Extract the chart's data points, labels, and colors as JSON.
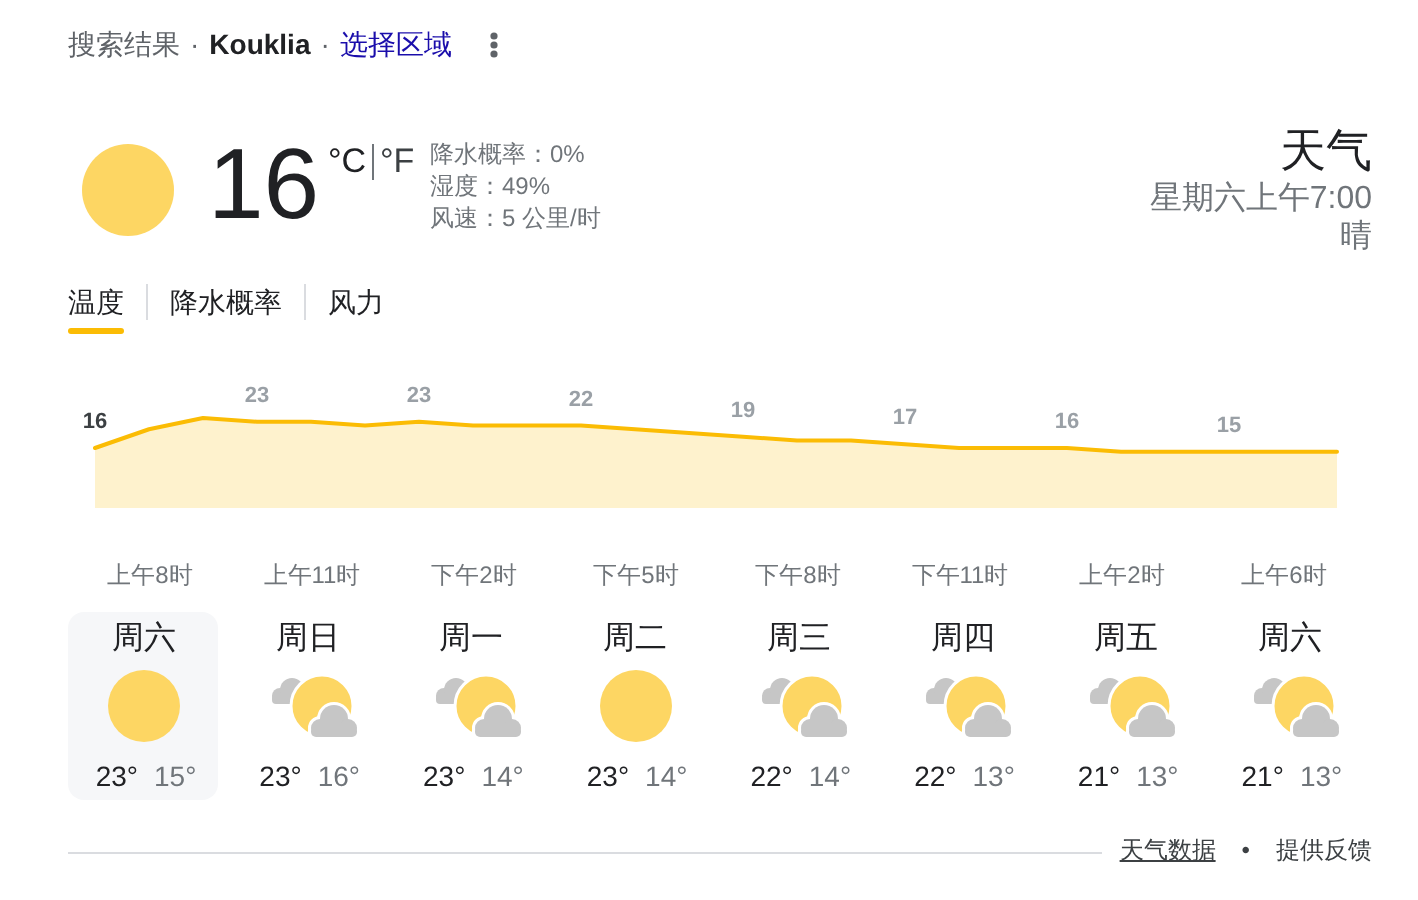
{
  "chart_data": [
    {
      "type": "other",
      "annotations": [
        "搜索结果",
        "·",
        "Kouklia",
        "·",
        "选择区域",
        "16",
        "°C",
        "°F",
        "降水概率：0%",
        "湿度：49%",
        "风速：5 公里/时",
        "天气",
        "星期六上午7:00",
        "晴",
        "温度",
        "降水概率",
        "风力"
      ]
    },
    {
      "type": "area",
      "categories": [
        null,
        "上午8时",
        null,
        null,
        "上午11时",
        null,
        null,
        "下午2时",
        null,
        null,
        "下午5时",
        null,
        null,
        "下午8时",
        null,
        null,
        "下午11时",
        null,
        null,
        "上午2时",
        null,
        null,
        "上午6时",
        null
      ],
      "values": [
        16,
        21,
        24,
        23,
        23,
        22,
        23,
        22,
        22,
        22,
        21,
        20,
        19,
        18,
        18,
        17,
        16,
        16,
        16,
        15,
        15,
        15,
        15,
        15
      ],
      "value_labels": [
        "16",
        null,
        null,
        "23",
        null,
        null,
        "23",
        null,
        null,
        "22",
        null,
        null,
        "19",
        null,
        null,
        "17",
        null,
        null,
        "16",
        null,
        null,
        "15",
        null,
        null
      ],
      "color": "#fbbc04"
    },
    {
      "type": "other",
      "categories": [
        "周六",
        "周日",
        "周一",
        "周二",
        "周三",
        "周四",
        "周五",
        "周六"
      ],
      "annotations": [
        "23°",
        "15°",
        "23°",
        "16°",
        "23°",
        "14°",
        "23°",
        "14°",
        "22°",
        "14°",
        "22°",
        "13°",
        "21°",
        "13°",
        "21°",
        "13°",
        "天气数据",
        "•",
        "提供反馈"
      ]
    }
  ]
}
